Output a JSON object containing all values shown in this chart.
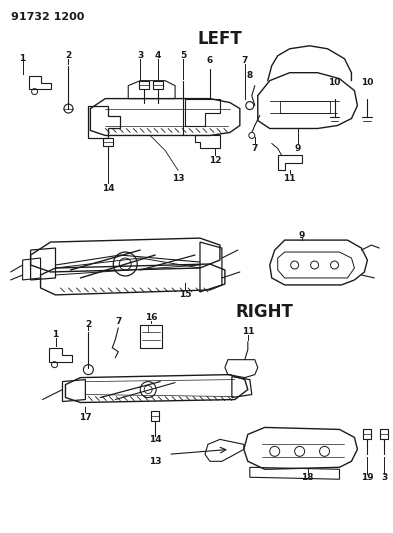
{
  "part_number": "91732 1200",
  "background_color": "#ffffff",
  "line_color": "#1a1a1a",
  "text_color": "#1a1a1a",
  "left_label": "LEFT",
  "right_label": "RIGHT",
  "figsize": [
    3.93,
    5.33
  ],
  "dpi": 100
}
